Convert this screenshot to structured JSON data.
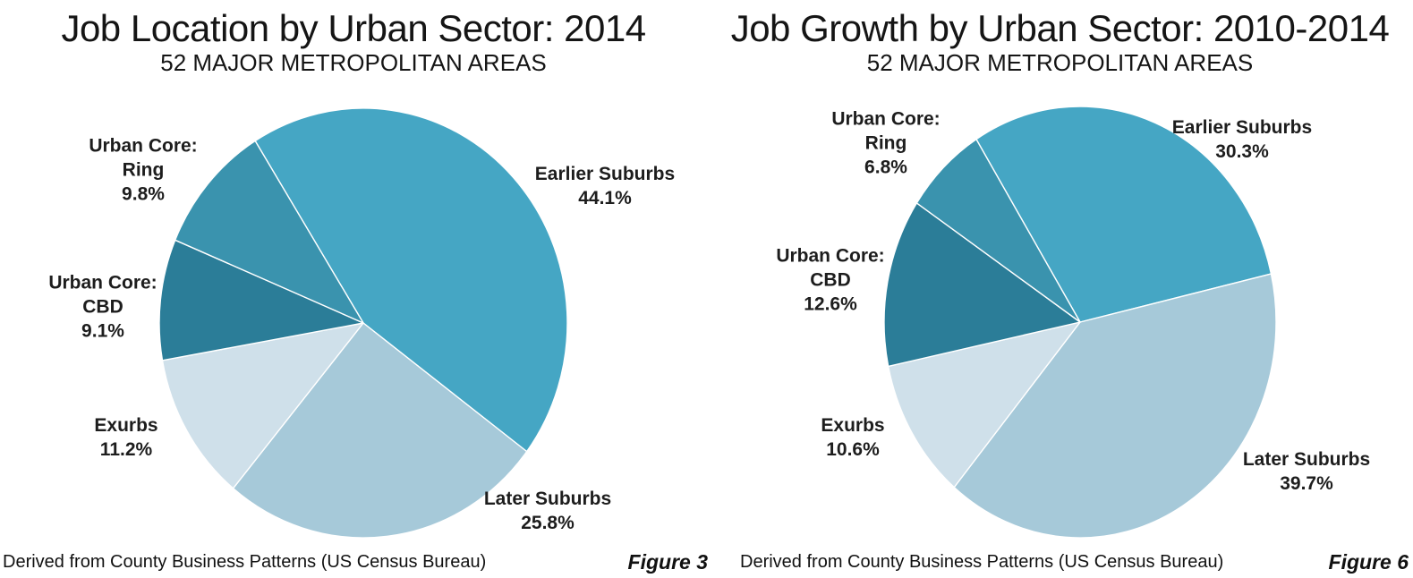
{
  "page": {
    "background": "#ffffff"
  },
  "chart_data": [
    {
      "type": "pie",
      "title": "Job Location by Urban Sector: 2014",
      "subtitle": "52 MAJOR METROPOLITAN AREAS",
      "source": "Derived from County Business Patterns (US Census Bureau)",
      "figure_label": "Figure 3",
      "legend": "none",
      "label_style": "outside",
      "start_angle_deg": -32,
      "slices": [
        {
          "name": "Earlier Suburbs",
          "value": 44.1,
          "color": "#45a6c4",
          "label_line1": "Earlier Suburbs",
          "label_line2": "44.1%"
        },
        {
          "name": "Later Suburbs",
          "value": 25.8,
          "color": "#a6c9d9",
          "label_line1": "Later Suburbs",
          "label_line2": "25.8%"
        },
        {
          "name": "Exurbs",
          "value": 11.2,
          "color": "#cfe0ea",
          "label_line1": "Exurbs",
          "label_line2": "11.2%"
        },
        {
          "name": "Urban Core: CBD",
          "value": 9.1,
          "color": "#2b7d98",
          "label_line1": "Urban Core:",
          "label_line2": "CBD",
          "label_line3": "9.1%"
        },
        {
          "name": "Urban Core: Ring",
          "value": 9.8,
          "color": "#3a93ae",
          "label_line1": "Urban Core:",
          "label_line2": "Ring",
          "label_line3": "9.8%"
        }
      ]
    },
    {
      "type": "pie",
      "title": "Job Growth by Urban Sector: 2010-2014",
      "subtitle": "52 MAJOR METROPOLITAN AREAS",
      "source": "Derived from County Business Patterns (US Census Bureau)",
      "figure_label": "Figure 6",
      "legend": "none",
      "label_style": "outside",
      "start_angle_deg": -32,
      "slices": [
        {
          "name": "Earlier Suburbs",
          "value": 30.3,
          "color": "#45a6c4",
          "label_line1": "Earlier Suburbs",
          "label_line2": "30.3%"
        },
        {
          "name": "Later Suburbs",
          "value": 39.7,
          "color": "#a6c9d9",
          "label_line1": "Later Suburbs",
          "label_line2": "39.7%"
        },
        {
          "name": "Exurbs",
          "value": 10.6,
          "color": "#cfe0ea",
          "label_line1": "Exurbs",
          "label_line2": "10.6%"
        },
        {
          "name": "Urban Core: CBD",
          "value": 12.6,
          "color": "#2b7d98",
          "label_line1": "Urban Core:",
          "label_line2": "CBD",
          "label_line3": "12.6%"
        },
        {
          "name": "Urban Core: Ring",
          "value": 6.8,
          "color": "#3a93ae",
          "label_line1": "Urban Core:",
          "label_line2": "Ring",
          "label_line3": "6.8%"
        }
      ]
    }
  ]
}
